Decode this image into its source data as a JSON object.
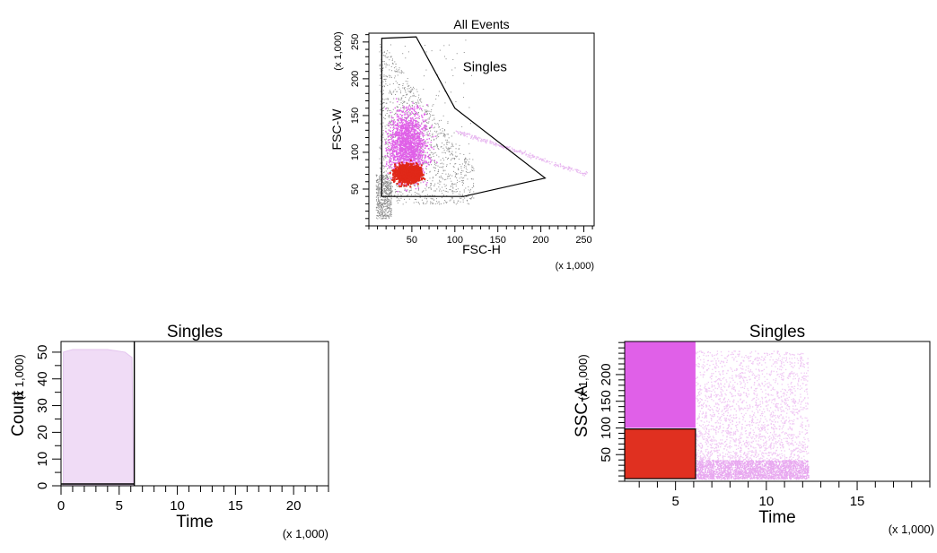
{
  "chart_data": [
    {
      "type": "scatter",
      "title": "All Events",
      "xlabel": "FSC-H",
      "ylabel": "FSC-W",
      "x_multiplier": "(x 1,000)",
      "y_multiplier": "(x 1,000)",
      "xlim": [
        0,
        262
      ],
      "ylim": [
        0,
        262
      ],
      "x_ticks": [
        50,
        100,
        150,
        200,
        250
      ],
      "y_ticks": [
        50,
        100,
        150,
        200,
        250
      ],
      "gate": {
        "label": "Singles",
        "polygon": [
          [
            15,
            40
          ],
          [
            15,
            255
          ],
          [
            55,
            257
          ],
          [
            100,
            160
          ],
          [
            205,
            65
          ],
          [
            110,
            40
          ]
        ]
      },
      "populations": [
        {
          "color": "#8a8a8a",
          "label": ""
        },
        {
          "color": "#e060e8",
          "label": ""
        },
        {
          "color": "#e02818",
          "label": ""
        }
      ],
      "tail": {
        "color": "#e8b8f0",
        "from": [
          100,
          130
        ],
        "to": [
          255,
          70
        ]
      }
    },
    {
      "type": "area",
      "title": "Singles",
      "xlabel": "Time",
      "ylabel": "Count",
      "x_multiplier": "(x 1,000)",
      "y_multiplier": "(x 1,000)",
      "xlim": [
        0,
        23
      ],
      "ylim": [
        0,
        54
      ],
      "x_ticks": [
        0,
        5,
        10,
        15,
        20
      ],
      "y_ticks": [
        0,
        10,
        20,
        30,
        40,
        50
      ],
      "series": [
        {
          "x": [
            0.2,
            1,
            2,
            3,
            4,
            5.5,
            6.1,
            6.25
          ],
          "y": [
            50,
            51,
            51,
            51,
            51,
            50,
            48,
            0
          ]
        }
      ],
      "gate_x_max": 6.3,
      "fill_color": "#f0dcf6"
    },
    {
      "type": "scatter",
      "title": "Singles",
      "xlabel": "Time",
      "ylabel": "SSC-A",
      "x_multiplier": "(x 1,000)",
      "y_multiplier": "(x 1,000)",
      "xlim": [
        2.2,
        19
      ],
      "ylim": [
        0,
        262
      ],
      "x_ticks": [
        5,
        10,
        15
      ],
      "y_ticks": [
        50,
        100,
        150,
        200
      ],
      "blocks": [
        {
          "x": [
            2.2,
            6.1
          ],
          "y": [
            100,
            262
          ],
          "color": "#e060e8"
        },
        {
          "x": [
            2.2,
            6.1
          ],
          "y": [
            5,
            98
          ],
          "color": "#e03020"
        }
      ],
      "scatter_range": {
        "x": [
          6.1,
          12.3
        ],
        "y": [
          5,
          245
        ],
        "color": "#f0c8f4"
      },
      "dense_band": {
        "y": [
          5,
          40
        ],
        "color": "#e8a8f0"
      }
    }
  ]
}
